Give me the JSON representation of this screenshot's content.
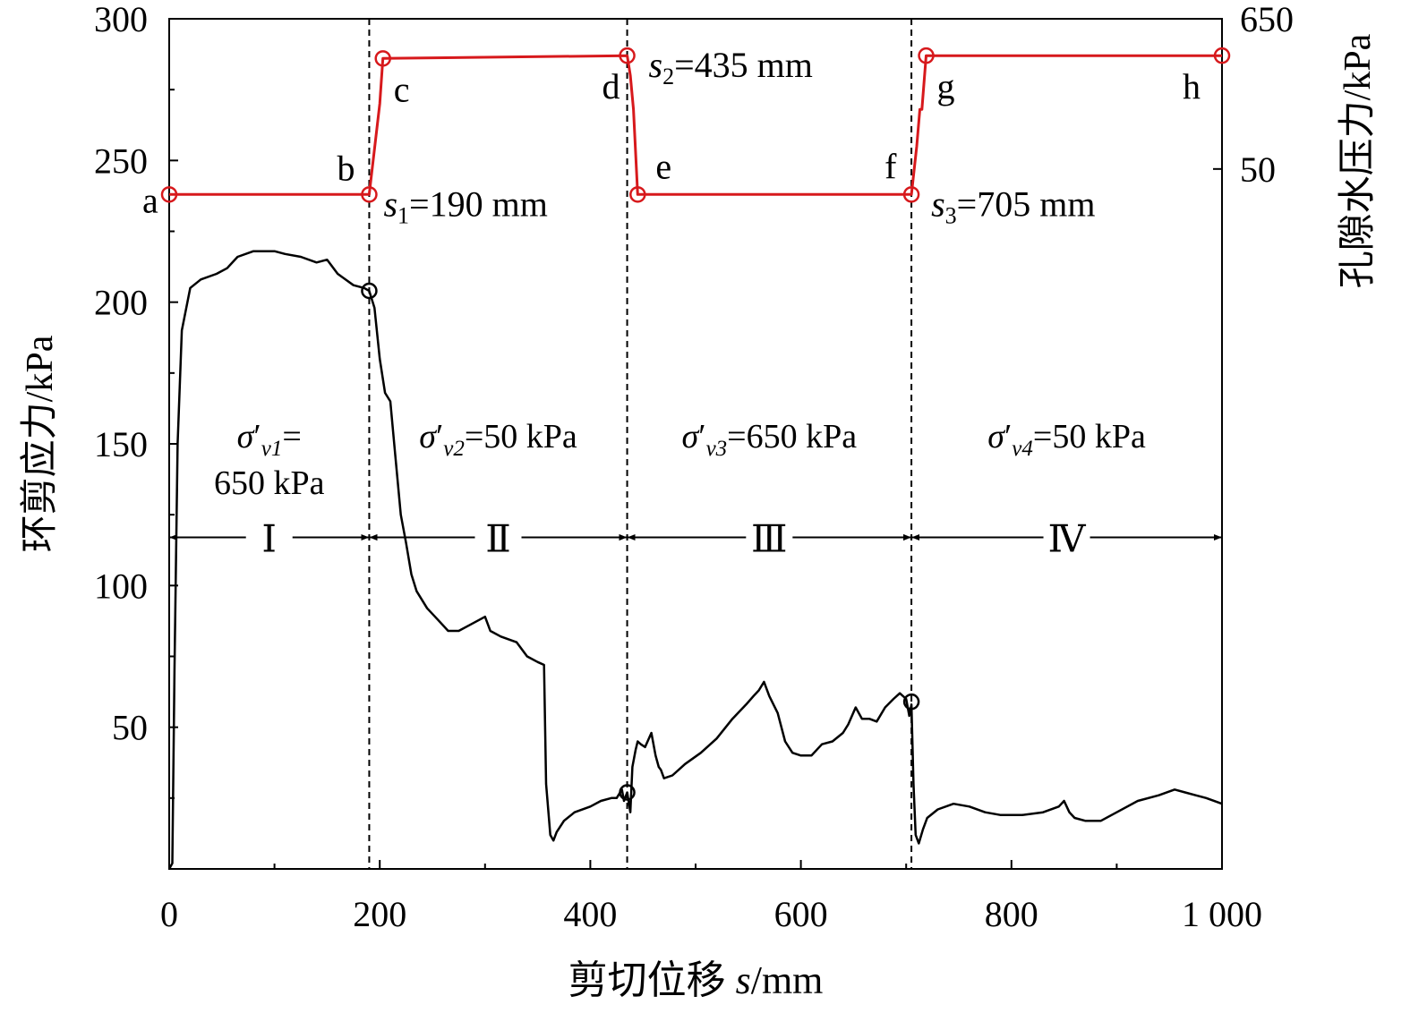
{
  "chart_data": {
    "type": "line",
    "xlabel": {
      "prefix": "剪切位移 ",
      "var": "s",
      "suffix": "/mm"
    },
    "ylabel_left": "环剪应力/kPa",
    "ylabel_right": "孔隙水压力/kPa",
    "xlim": [
      0,
      1000
    ],
    "ylim_left": [
      0,
      300
    ],
    "x_ticks": [
      0,
      200,
      400,
      600,
      800,
      1000
    ],
    "x_tick_labels": [
      "0",
      "200",
      "400",
      "600",
      "800",
      "1 000"
    ],
    "y_ticks_left": [
      50,
      100,
      150,
      200,
      250,
      300
    ],
    "y_tick_labels_left": [
      "50",
      "100",
      "150",
      "200",
      "250",
      "300"
    ],
    "right_axis_ticks": [
      {
        "label": "50",
        "at_left_value": 247
      },
      {
        "label": "650",
        "at_left_value": 300
      }
    ],
    "series": [
      {
        "role": "shear_stress",
        "color": "#000000",
        "x": [
          0,
          3,
          5,
          8,
          12,
          20,
          30,
          45,
          55,
          65,
          80,
          90,
          100,
          110,
          125,
          140,
          150,
          160,
          175,
          185,
          190,
          195,
          200,
          205,
          210,
          215,
          220,
          225,
          230,
          235,
          245,
          255,
          265,
          275,
          285,
          300,
          305,
          315,
          330,
          340,
          350,
          356,
          358,
          362,
          365,
          368,
          375,
          385,
          400,
          410,
          420,
          425,
          430,
          432,
          435,
          438,
          440,
          443,
          445,
          448,
          452,
          458,
          462,
          465,
          467,
          470,
          478,
          490,
          505,
          520,
          535,
          548,
          555,
          560,
          565,
          570,
          578,
          585,
          592,
          600,
          610,
          620,
          630,
          640,
          645,
          652,
          658,
          665,
          672,
          680,
          688,
          694,
          700,
          703,
          705,
          707,
          709,
          712,
          716,
          720,
          730,
          745,
          760,
          775,
          790,
          810,
          830,
          845,
          850,
          855,
          860,
          870,
          885,
          900,
          920,
          940,
          955,
          965,
          975,
          985,
          1000
        ],
        "y": [
          0,
          2,
          70,
          150,
          190,
          205,
          208,
          210,
          212,
          216,
          218,
          218,
          218,
          217,
          216,
          214,
          215,
          210,
          206,
          205,
          204,
          198,
          180,
          168,
          165,
          145,
          125,
          115,
          104,
          98,
          92,
          88,
          84,
          84,
          86,
          89,
          84,
          82,
          80,
          75,
          73,
          72,
          30,
          12,
          10,
          13,
          17,
          20,
          22,
          24,
          25,
          25,
          28,
          24,
          27,
          20,
          36,
          42,
          45,
          44,
          43,
          48,
          40,
          36,
          35,
          32,
          33,
          37,
          41,
          46,
          53,
          58,
          61,
          63,
          66,
          61,
          55,
          45,
          41,
          40,
          40,
          44,
          45,
          48,
          51,
          57,
          53,
          53,
          52,
          57,
          60,
          62,
          60,
          54,
          58,
          30,
          12,
          9,
          14,
          18,
          21,
          23,
          22,
          20,
          19,
          19,
          20,
          22,
          24,
          20,
          18,
          17,
          17,
          20,
          24,
          26,
          28,
          27,
          26,
          25,
          23
        ]
      },
      {
        "role": "pore_pressure",
        "color": "#d7191c",
        "x": [
          0,
          190,
          200,
          203,
          435,
          438,
          441,
          445,
          705,
          710,
          713,
          715,
          719,
          1000
        ],
        "y": [
          238,
          238,
          270,
          286,
          287,
          280,
          268,
          238,
          238,
          255,
          268,
          268,
          287,
          287
        ]
      }
    ],
    "markers": [
      {
        "series": "pore_pressure",
        "label": "a",
        "x": 0,
        "y": 238
      },
      {
        "series": "pore_pressure",
        "label": "b",
        "x": 190,
        "y": 238
      },
      {
        "series": "pore_pressure",
        "label": "c",
        "x": 203,
        "y": 286
      },
      {
        "series": "pore_pressure",
        "label": "d",
        "x": 435,
        "y": 287
      },
      {
        "series": "pore_pressure",
        "label": "e",
        "x": 445,
        "y": 238
      },
      {
        "series": "pore_pressure",
        "label": "f",
        "x": 705,
        "y": 238
      },
      {
        "series": "pore_pressure",
        "label": "g",
        "x": 719,
        "y": 287
      },
      {
        "series": "pore_pressure",
        "label": "h",
        "x": 1000,
        "y": 287
      },
      {
        "series": "shear_stress",
        "label": "",
        "x": 190,
        "y": 204
      },
      {
        "series": "shear_stress",
        "label": "",
        "x": 435,
        "y": 27
      },
      {
        "series": "shear_stress",
        "label": "",
        "x": 705,
        "y": 59
      }
    ],
    "phase_boundaries": [
      190,
      435,
      705
    ],
    "boundary_labels": [
      {
        "var": "s",
        "sub": "1",
        "text": "=190 mm"
      },
      {
        "var": "s",
        "sub": "2",
        "text": "=435 mm"
      },
      {
        "var": "s",
        "sub": "3",
        "text": "=705 mm"
      }
    ],
    "stages": [
      {
        "numeral": "Ⅰ",
        "from": 0,
        "to": 190,
        "sigma": "σ",
        "prime": "′",
        "sub": "v1",
        "stress_eq": "=",
        "stress_value": "650 kPa"
      },
      {
        "numeral": "Ⅱ",
        "from": 190,
        "to": 435,
        "sigma": "σ",
        "prime": "′",
        "sub": "v2",
        "stress_eq": "=50 kPa",
        "stress_value": ""
      },
      {
        "numeral": "Ⅲ",
        "from": 435,
        "to": 705,
        "sigma": "σ",
        "prime": "′",
        "sub": "v3",
        "stress_eq": "=650 kPa",
        "stress_value": ""
      },
      {
        "numeral": "Ⅳ",
        "from": 705,
        "to": 1000,
        "sigma": "σ",
        "prime": "′",
        "sub": "v4",
        "stress_eq": "=50 kPa",
        "stress_value": ""
      }
    ],
    "stage_arrow_level": 117,
    "grid": false,
    "legend": "none"
  }
}
